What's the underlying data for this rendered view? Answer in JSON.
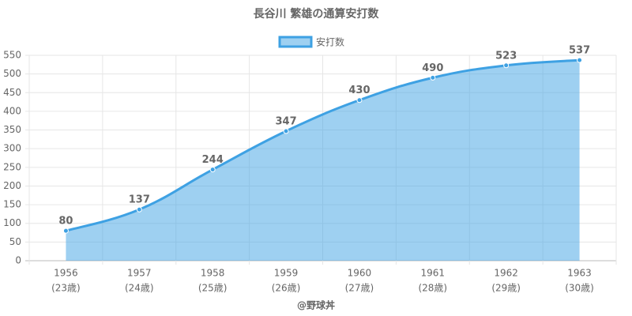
{
  "chart_data": {
    "type": "line",
    "title": "長谷川 繁雄の通算安打数",
    "categories": [
      "1956",
      "1957",
      "1958",
      "1959",
      "1960",
      "1961",
      "1962",
      "1963"
    ],
    "category_sublabels": [
      "(23歳)",
      "(24歳)",
      "(25歳)",
      "(26歳)",
      "(27歳)",
      "(28歳)",
      "(29歳)",
      "(30歳)"
    ],
    "series": [
      {
        "name": "安打数",
        "color": "#3ea1e3",
        "values": [
          80,
          137,
          244,
          347,
          430,
          490,
          523,
          537
        ]
      }
    ],
    "ylim": [
      0,
      550
    ],
    "yticks": [
      0,
      50,
      100,
      150,
      200,
      250,
      300,
      350,
      400,
      450,
      500,
      550
    ],
    "grid": true,
    "filled": true,
    "legend": "top",
    "footer": "@野球丼"
  }
}
